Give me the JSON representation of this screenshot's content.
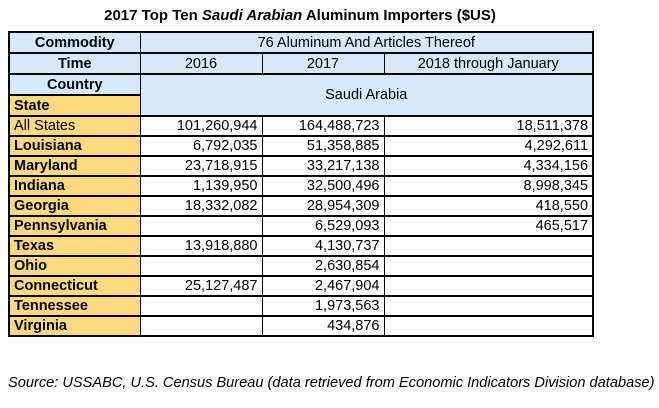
{
  "title": {
    "prefix": "2017 Top Ten ",
    "emphasis": "Saudi Arabian",
    "suffix": " Aluminum Importers ($US)"
  },
  "colors": {
    "header_blue": "#d6e9fa",
    "label_orange": "#fcd881",
    "border": "#000000"
  },
  "header": {
    "commodity_label": "Commodity",
    "commodity_value": "76 Aluminum And Articles Thereof",
    "time_label": "Time",
    "time_2016": "2016",
    "time_2017": "2017",
    "time_2018": "2018 through January",
    "country_label": "Country",
    "state_label": "State",
    "merged_value": "Saudi Arabia"
  },
  "rows": [
    {
      "state": "All States",
      "bold": false,
      "v2016": "101,260,944",
      "v2017": "164,488,723",
      "v2018": "18,511,378"
    },
    {
      "state": "Louisiana",
      "bold": true,
      "v2016": "6,792,035",
      "v2017": "51,358,885",
      "v2018": "4,292,611"
    },
    {
      "state": "Maryland",
      "bold": true,
      "v2016": "23,718,915",
      "v2017": "33,217,138",
      "v2018": "4,334,156"
    },
    {
      "state": "Indiana",
      "bold": true,
      "v2016": "1,139,950",
      "v2017": "32,500,496",
      "v2018": "8,998,345"
    },
    {
      "state": "Georgia",
      "bold": true,
      "v2016": "18,332,082",
      "v2017": "28,954,309",
      "v2018": "418,550"
    },
    {
      "state": "Pennsylvania",
      "bold": true,
      "v2016": "",
      "v2017": "6,529,093",
      "v2018": "465,517"
    },
    {
      "state": "Texas",
      "bold": true,
      "v2016": "13,918,880",
      "v2017": "4,130,737",
      "v2018": ""
    },
    {
      "state": "Ohio",
      "bold": true,
      "v2016": "",
      "v2017": "2,630,854",
      "v2018": ""
    },
    {
      "state": "Connecticut",
      "bold": true,
      "v2016": "25,127,487",
      "v2017": "2,467,904",
      "v2018": ""
    },
    {
      "state": "Tennessee",
      "bold": true,
      "v2016": "",
      "v2017": "1,973,563",
      "v2018": ""
    },
    {
      "state": "Virginia",
      "bold": true,
      "v2016": "",
      "v2017": "434,876",
      "v2018": ""
    }
  ],
  "source": "Source: USSABC, U.S. Census Bureau (data retrieved from Economic Indicators Division database)",
  "chart_data": {
    "type": "table",
    "title": "2017 Top Ten Saudi Arabian Aluminum Importers ($US)",
    "commodity": "76 Aluminum And Articles Thereof",
    "country": "Saudi Arabia",
    "columns": [
      "State",
      "2016",
      "2017",
      "2018 through January"
    ],
    "rows": [
      [
        "All States",
        101260944,
        164488723,
        18511378
      ],
      [
        "Louisiana",
        6792035,
        51358885,
        4292611
      ],
      [
        "Maryland",
        23718915,
        33217138,
        4334156
      ],
      [
        "Indiana",
        1139950,
        32500496,
        8998345
      ],
      [
        "Georgia",
        18332082,
        28954309,
        418550
      ],
      [
        "Pennsylvania",
        null,
        6529093,
        465517
      ],
      [
        "Texas",
        13918880,
        4130737,
        null
      ],
      [
        "Ohio",
        null,
        2630854,
        null
      ],
      [
        "Connecticut",
        25127487,
        2467904,
        null
      ],
      [
        "Tennessee",
        null,
        1973563,
        null
      ],
      [
        "Virginia",
        null,
        434876,
        null
      ]
    ]
  }
}
